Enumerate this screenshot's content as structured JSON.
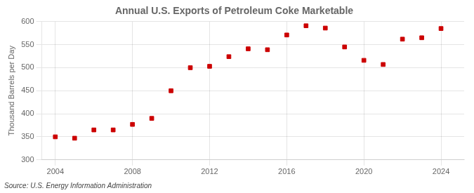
{
  "chart_data": {
    "type": "scatter",
    "title": "Annual U.S. Exports of Petroleum Coke Marketable",
    "y_label": "Thousand Barrels per Day",
    "annotations": [
      "Source: U.S. Energy Information Administration"
    ],
    "x": [
      2004,
      2005,
      2006,
      2007,
      2008,
      2009,
      2010,
      2011,
      2012,
      2013,
      2014,
      2015,
      2016,
      2017,
      2018,
      2019,
      2020,
      2021,
      2022,
      2023,
      2024
    ],
    "values": [
      350,
      347,
      365,
      365,
      377,
      390,
      450,
      500,
      503,
      524,
      541,
      539,
      571,
      591,
      586,
      545,
      516,
      507,
      562,
      565,
      585
    ],
    "color": "#cc0000",
    "marker": "square",
    "xlim": [
      2003.3,
      2025.2
    ],
    "xticks": [
      2004,
      2008,
      2012,
      2016,
      2020,
      2024
    ],
    "ylim": [
      300,
      600
    ],
    "yticks": [
      300,
      350,
      400,
      450,
      500,
      550,
      600
    ],
    "grid": true
  }
}
